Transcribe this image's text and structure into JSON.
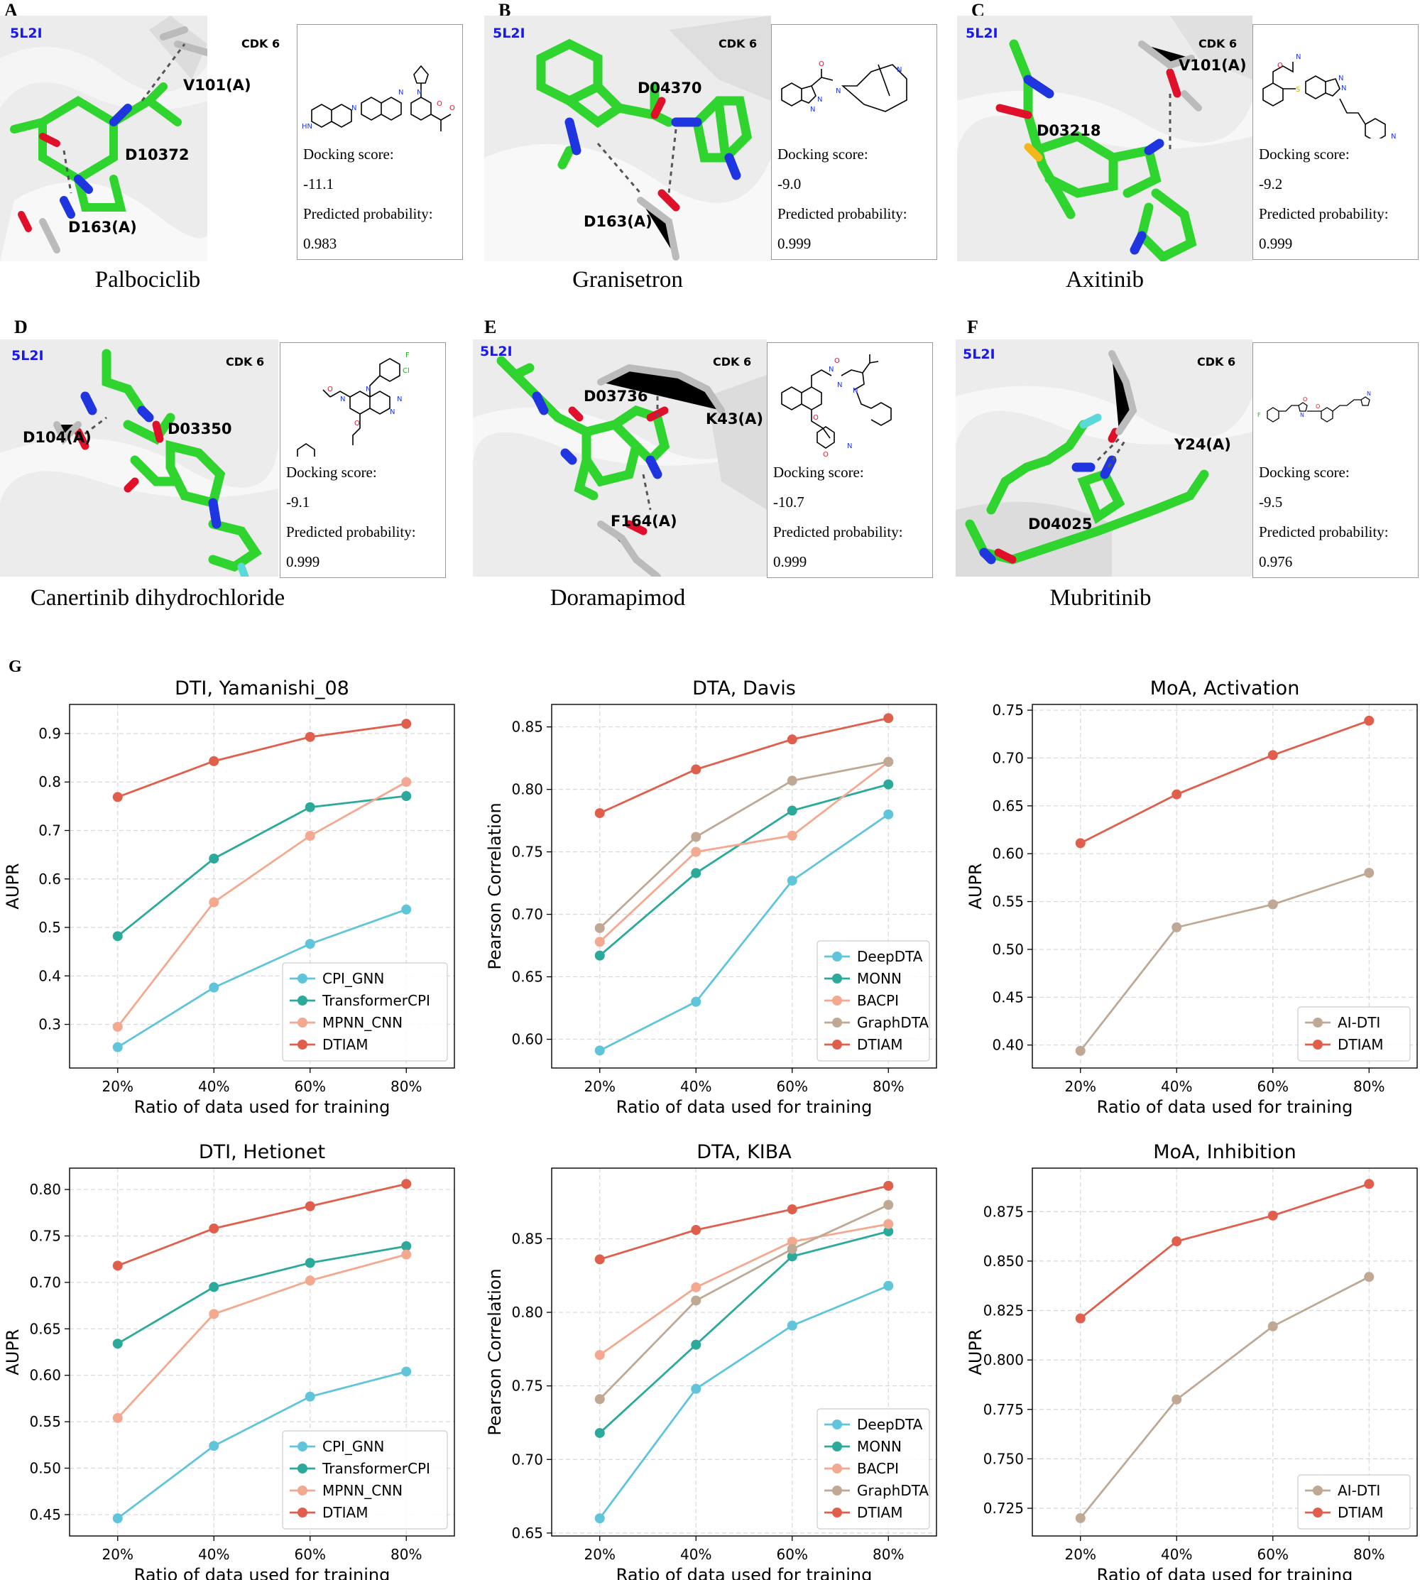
{
  "panels": [
    {
      "letter": "A",
      "pdb": "5L2I",
      "cdk": "CDK 6",
      "residues": [
        "V101(A)",
        "D10372",
        "D163(A)"
      ],
      "drug": "Palbociclib",
      "score_label": "Docking score:",
      "score": "-11.1",
      "prob_label": "Predicted probability:",
      "prob": "0.983"
    },
    {
      "letter": "B",
      "pdb": "5L2I",
      "cdk": "CDK 6",
      "residues": [
        "D04370",
        "D163(A)"
      ],
      "drug": "Granisetron",
      "score_label": "Docking score:",
      "score": "-9.0",
      "prob_label": "Predicted probability:",
      "prob": "0.999"
    },
    {
      "letter": "C",
      "pdb": "5L2I",
      "cdk": "CDK 6",
      "residues": [
        "V101(A)",
        "D03218"
      ],
      "drug": "Axitinib",
      "score_label": "Docking score:",
      "score": "-9.2",
      "prob_label": "Predicted probability:",
      "prob": "0.999"
    },
    {
      "letter": "D",
      "pdb": "5L2I",
      "cdk": "CDK 6",
      "residues": [
        "D104(A)",
        "D03350"
      ],
      "drug": "Canertinib dihydrochloride",
      "score_label": "Docking score:",
      "score": "-9.1",
      "prob_label": "Predicted probability:",
      "prob": "0.999"
    },
    {
      "letter": "E",
      "pdb": "5L2I",
      "cdk": "CDK 6",
      "residues": [
        "D03736",
        "K43(A)",
        "F164(A)"
      ],
      "drug": "Doramapimod",
      "score_label": "Docking score:",
      "score": "-10.7",
      "prob_label": "Predicted probability:",
      "prob": "0.999"
    },
    {
      "letter": "F",
      "pdb": "5L2I",
      "cdk": "CDK 6",
      "residues": [
        "Y24(A)",
        "D04025"
      ],
      "drug": "Mubritinib",
      "score_label": "Docking score:",
      "score": "-9.5",
      "prob_label": "Predicted probability:",
      "prob": "0.976"
    }
  ],
  "g_letter": "G",
  "colors": {
    "DTIAM": "#e05f4c",
    "DeepDTA": "#60c4da",
    "CPI_GNN": "#60c4da",
    "MONN": "#2ba99a",
    "TransformerCPI": "#2ba99a",
    "BACPI": "#f3a98f",
    "MPNN_CNN": "#f3a98f",
    "GraphDTA": "#bfa995",
    "AI-DTI": "#bfa995"
  },
  "chart_data": [
    {
      "type": "line",
      "title": "DTI, Yamanishi_08",
      "xlabel": "Ratio of data used for training",
      "ylabel": "AUPR",
      "categories": [
        "20%",
        "40%",
        "60%",
        "80%"
      ],
      "ylim": [
        0.21,
        0.96
      ],
      "yticks": [
        0.3,
        0.4,
        0.5,
        0.6,
        0.7,
        0.8,
        0.9
      ],
      "tick_labels": [
        "0.3",
        "0.4",
        "0.5",
        "0.6",
        "0.7",
        "0.8",
        "0.9"
      ],
      "legend": "lower-right",
      "series": [
        {
          "name": "CPI_GNN",
          "values": [
            0.253,
            0.376,
            0.466,
            0.537
          ]
        },
        {
          "name": "TransformerCPI",
          "values": [
            0.482,
            0.642,
            0.748,
            0.771
          ]
        },
        {
          "name": "MPNN_CNN",
          "values": [
            0.295,
            0.552,
            0.689,
            0.8
          ]
        },
        {
          "name": "DTIAM",
          "values": [
            0.769,
            0.843,
            0.893,
            0.92
          ]
        }
      ]
    },
    {
      "type": "line",
      "title": "DTA, Davis",
      "xlabel": "Ratio of data used for training",
      "ylabel": "Pearson Correlation",
      "categories": [
        "20%",
        "40%",
        "60%",
        "80%"
      ],
      "ylim": [
        0.577,
        0.868
      ],
      "yticks": [
        0.6,
        0.65,
        0.7,
        0.75,
        0.8,
        0.85
      ],
      "tick_labels": [
        "0.60",
        "0.65",
        "0.70",
        "0.75",
        "0.80",
        "0.85"
      ],
      "legend": "lower-right",
      "series": [
        {
          "name": "DeepDTA",
          "values": [
            0.591,
            0.63,
            0.727,
            0.78
          ]
        },
        {
          "name": "MONN",
          "values": [
            0.667,
            0.733,
            0.783,
            0.804
          ]
        },
        {
          "name": "BACPI",
          "values": [
            0.678,
            0.75,
            0.763,
            0.822
          ]
        },
        {
          "name": "GraphDTA",
          "values": [
            0.689,
            0.762,
            0.807,
            0.822
          ]
        },
        {
          "name": "DTIAM",
          "values": [
            0.781,
            0.816,
            0.84,
            0.857
          ]
        }
      ]
    },
    {
      "type": "line",
      "title": "MoA, Activation",
      "xlabel": "Ratio of data used for training",
      "ylabel": "AUPR",
      "categories": [
        "20%",
        "40%",
        "60%",
        "80%"
      ],
      "ylim": [
        0.376,
        0.756
      ],
      "yticks": [
        0.4,
        0.45,
        0.5,
        0.55,
        0.6,
        0.65,
        0.7,
        0.75
      ],
      "tick_labels": [
        "0.40",
        "0.45",
        "0.50",
        "0.55",
        "0.60",
        "0.65",
        "0.70",
        "0.75"
      ],
      "legend": "lower-right",
      "series": [
        {
          "name": "AI-DTI",
          "values": [
            0.394,
            0.523,
            0.547,
            0.58
          ]
        },
        {
          "name": "DTIAM",
          "values": [
            0.611,
            0.662,
            0.703,
            0.739
          ]
        }
      ]
    },
    {
      "type": "line",
      "title": "DTI, Hetionet",
      "xlabel": "Ratio of data used for training",
      "ylabel": "AUPR",
      "categories": [
        "20%",
        "40%",
        "60%",
        "80%"
      ],
      "ylim": [
        0.427,
        0.823
      ],
      "yticks": [
        0.45,
        0.5,
        0.55,
        0.6,
        0.65,
        0.7,
        0.75,
        0.8
      ],
      "tick_labels": [
        "0.45",
        "0.50",
        "0.55",
        "0.60",
        "0.65",
        "0.70",
        "0.75",
        "0.80"
      ],
      "legend": "lower-right",
      "series": [
        {
          "name": "CPI_GNN",
          "values": [
            0.446,
            0.524,
            0.577,
            0.604
          ]
        },
        {
          "name": "TransformerCPI",
          "values": [
            0.634,
            0.695,
            0.721,
            0.739
          ]
        },
        {
          "name": "MPNN_CNN",
          "values": [
            0.554,
            0.666,
            0.702,
            0.73
          ]
        },
        {
          "name": "DTIAM",
          "values": [
            0.718,
            0.758,
            0.782,
            0.806
          ]
        }
      ]
    },
    {
      "type": "line",
      "title": "DTA, KIBA",
      "xlabel": "Ratio of data used for training",
      "ylabel": "Pearson Correlation",
      "categories": [
        "20%",
        "40%",
        "60%",
        "80%"
      ],
      "ylim": [
        0.648,
        0.898
      ],
      "yticks": [
        0.65,
        0.7,
        0.75,
        0.8,
        0.85
      ],
      "tick_labels": [
        "0.65",
        "0.70",
        "0.75",
        "0.80",
        "0.85"
      ],
      "legend": "lower-right",
      "series": [
        {
          "name": "DeepDTA",
          "values": [
            0.66,
            0.748,
            0.791,
            0.818
          ]
        },
        {
          "name": "MONN",
          "values": [
            0.718,
            0.778,
            0.838,
            0.855
          ]
        },
        {
          "name": "BACPI",
          "values": [
            0.771,
            0.817,
            0.848,
            0.86
          ]
        },
        {
          "name": "GraphDTA",
          "values": [
            0.741,
            0.808,
            0.843,
            0.873
          ]
        },
        {
          "name": "DTIAM",
          "values": [
            0.836,
            0.856,
            0.87,
            0.886
          ]
        }
      ]
    },
    {
      "type": "line",
      "title": "MoA, Inhibition",
      "xlabel": "Ratio of data used for training",
      "ylabel": "AUPR",
      "categories": [
        "20%",
        "40%",
        "60%",
        "80%"
      ],
      "ylim": [
        0.711,
        0.897
      ],
      "yticks": [
        0.725,
        0.75,
        0.775,
        0.8,
        0.825,
        0.85,
        0.875
      ],
      "tick_labels": [
        "0.725",
        "0.750",
        "0.775",
        "0.800",
        "0.825",
        "0.850",
        "0.875"
      ],
      "legend": "lower-right",
      "series": [
        {
          "name": "AI-DTI",
          "values": [
            0.72,
            0.78,
            0.817,
            0.842
          ]
        },
        {
          "name": "DTIAM",
          "values": [
            0.821,
            0.86,
            0.873,
            0.889
          ]
        }
      ]
    }
  ]
}
